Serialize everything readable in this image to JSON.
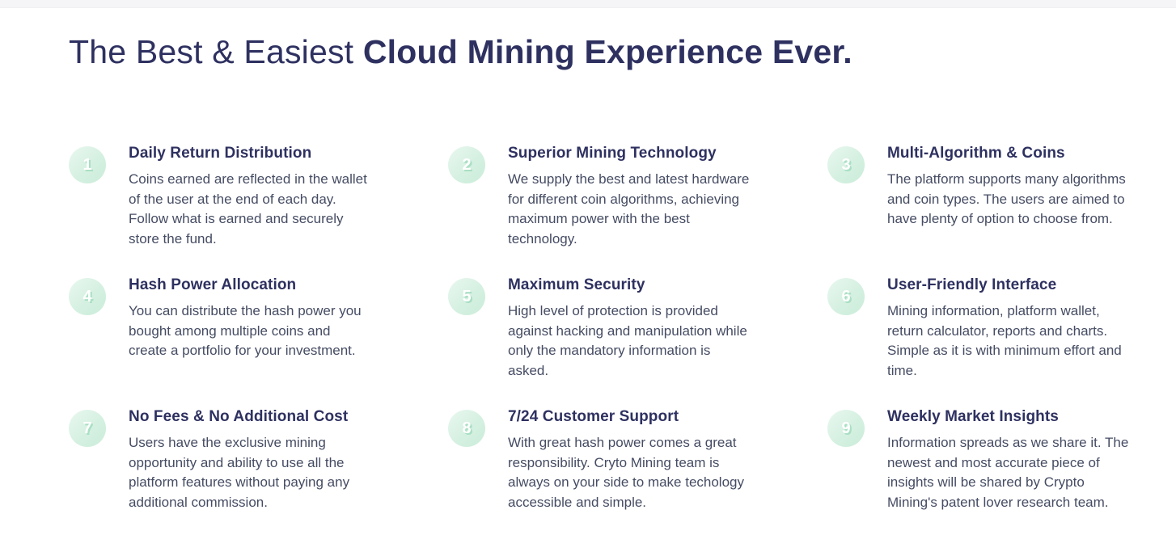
{
  "heading": {
    "light": "The Best & Easiest ",
    "bold": "Cloud Mining Experience Ever."
  },
  "features": [
    {
      "number": "1",
      "title": "Daily Return Distribution",
      "description": "Coins earned are reflected in the wallet of the user at the end of each day. Follow what is earned and securely store the fund."
    },
    {
      "number": "2",
      "title": "Superior Mining Technology",
      "description": "We supply the best and latest hardware for different coin algorithms, achieving maximum power with the best technology."
    },
    {
      "number": "3",
      "title": "Multi-Algorithm & Coins",
      "description": "The platform supports many algorithms and coin types. The users are aimed to have plenty of option to choose from."
    },
    {
      "number": "4",
      "title": "Hash Power Allocation",
      "description": "You can distribute the hash power you bought among multiple coins and create a portfolio for your investment."
    },
    {
      "number": "5",
      "title": "Maximum Security",
      "description": "High level of protection is provided against hacking and manipulation while only the mandatory information is asked."
    },
    {
      "number": "6",
      "title": "User-Friendly Interface",
      "description": "Mining information, platform wallet, return calculator, reports and charts. Simple as it is with minimum effort and time."
    },
    {
      "number": "7",
      "title": "No Fees & No Additional Cost",
      "description": "Users have the exclusive mining opportunity and ability to use all the platform features without paying any additional commission."
    },
    {
      "number": "8",
      "title": "7/24 Customer Support",
      "description": "With great hash power comes a great responsibility. Cryto Mining team is always on your side to make techology accessible and simple."
    },
    {
      "number": "9",
      "title": "Weekly Market Insights",
      "description": "Information spreads as we share it. The newest and most accurate piece of insights will be shared by Crypto Mining's patent lover research team."
    }
  ],
  "colors": {
    "heading_text": "#2e3160",
    "body_text": "#454c63",
    "badge_background": "#d5f0e1",
    "badge_number": "#ffffff",
    "badge_number_shadow": "#a9dfc3",
    "top_strip": "#f5f4f6"
  }
}
